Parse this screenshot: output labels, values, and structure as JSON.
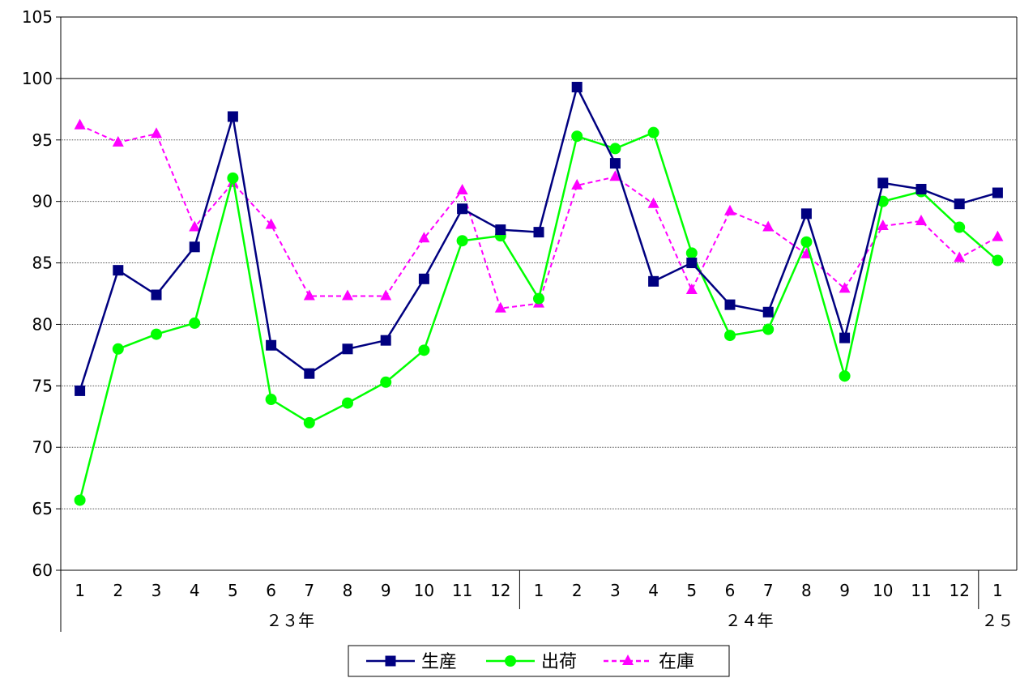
{
  "chart_data": {
    "type": "line",
    "ylim": [
      60,
      105
    ],
    "yticks": [
      60,
      65,
      70,
      75,
      80,
      85,
      90,
      95,
      100,
      105
    ],
    "grid": true,
    "categories": [
      "1",
      "2",
      "3",
      "4",
      "5",
      "6",
      "7",
      "8",
      "9",
      "10",
      "11",
      "12",
      "1",
      "2",
      "3",
      "4",
      "5",
      "6",
      "7",
      "8",
      "9",
      "10",
      "11",
      "12",
      "1"
    ],
    "groups": [
      {
        "label": "２３年",
        "count": 12
      },
      {
        "label": "２４年",
        "count": 12
      },
      {
        "label": "２５",
        "count": 1
      }
    ],
    "series": [
      {
        "name": "生産",
        "color": "#000080",
        "marker": "square",
        "dash": false,
        "values": [
          74.6,
          84.4,
          82.4,
          86.3,
          96.9,
          78.3,
          76.0,
          78.0,
          78.7,
          83.7,
          89.4,
          87.7,
          87.5,
          99.3,
          93.1,
          83.5,
          85.0,
          81.6,
          81.0,
          89.0,
          78.9,
          91.5,
          91.0,
          89.8,
          90.7
        ]
      },
      {
        "name": "出荷",
        "color": "#00ff00",
        "marker": "circle",
        "dash": false,
        "values": [
          65.7,
          78.0,
          79.2,
          80.1,
          91.9,
          73.9,
          72.0,
          73.6,
          75.3,
          77.9,
          86.8,
          87.2,
          82.1,
          95.3,
          94.3,
          95.6,
          85.8,
          79.1,
          79.6,
          86.7,
          75.8,
          90.0,
          90.8,
          87.9,
          85.2
        ]
      },
      {
        "name": "在庫",
        "color": "#ff00ff",
        "marker": "triangle",
        "dash": true,
        "values": [
          96.2,
          94.8,
          95.5,
          87.9,
          91.5,
          88.1,
          82.3,
          82.3,
          82.3,
          87.0,
          90.9,
          81.3,
          81.7,
          91.3,
          92.0,
          89.8,
          82.8,
          89.2,
          87.9,
          85.7,
          82.9,
          88.0,
          88.4,
          85.4,
          87.1
        ]
      }
    ],
    "legend": "bottom"
  }
}
